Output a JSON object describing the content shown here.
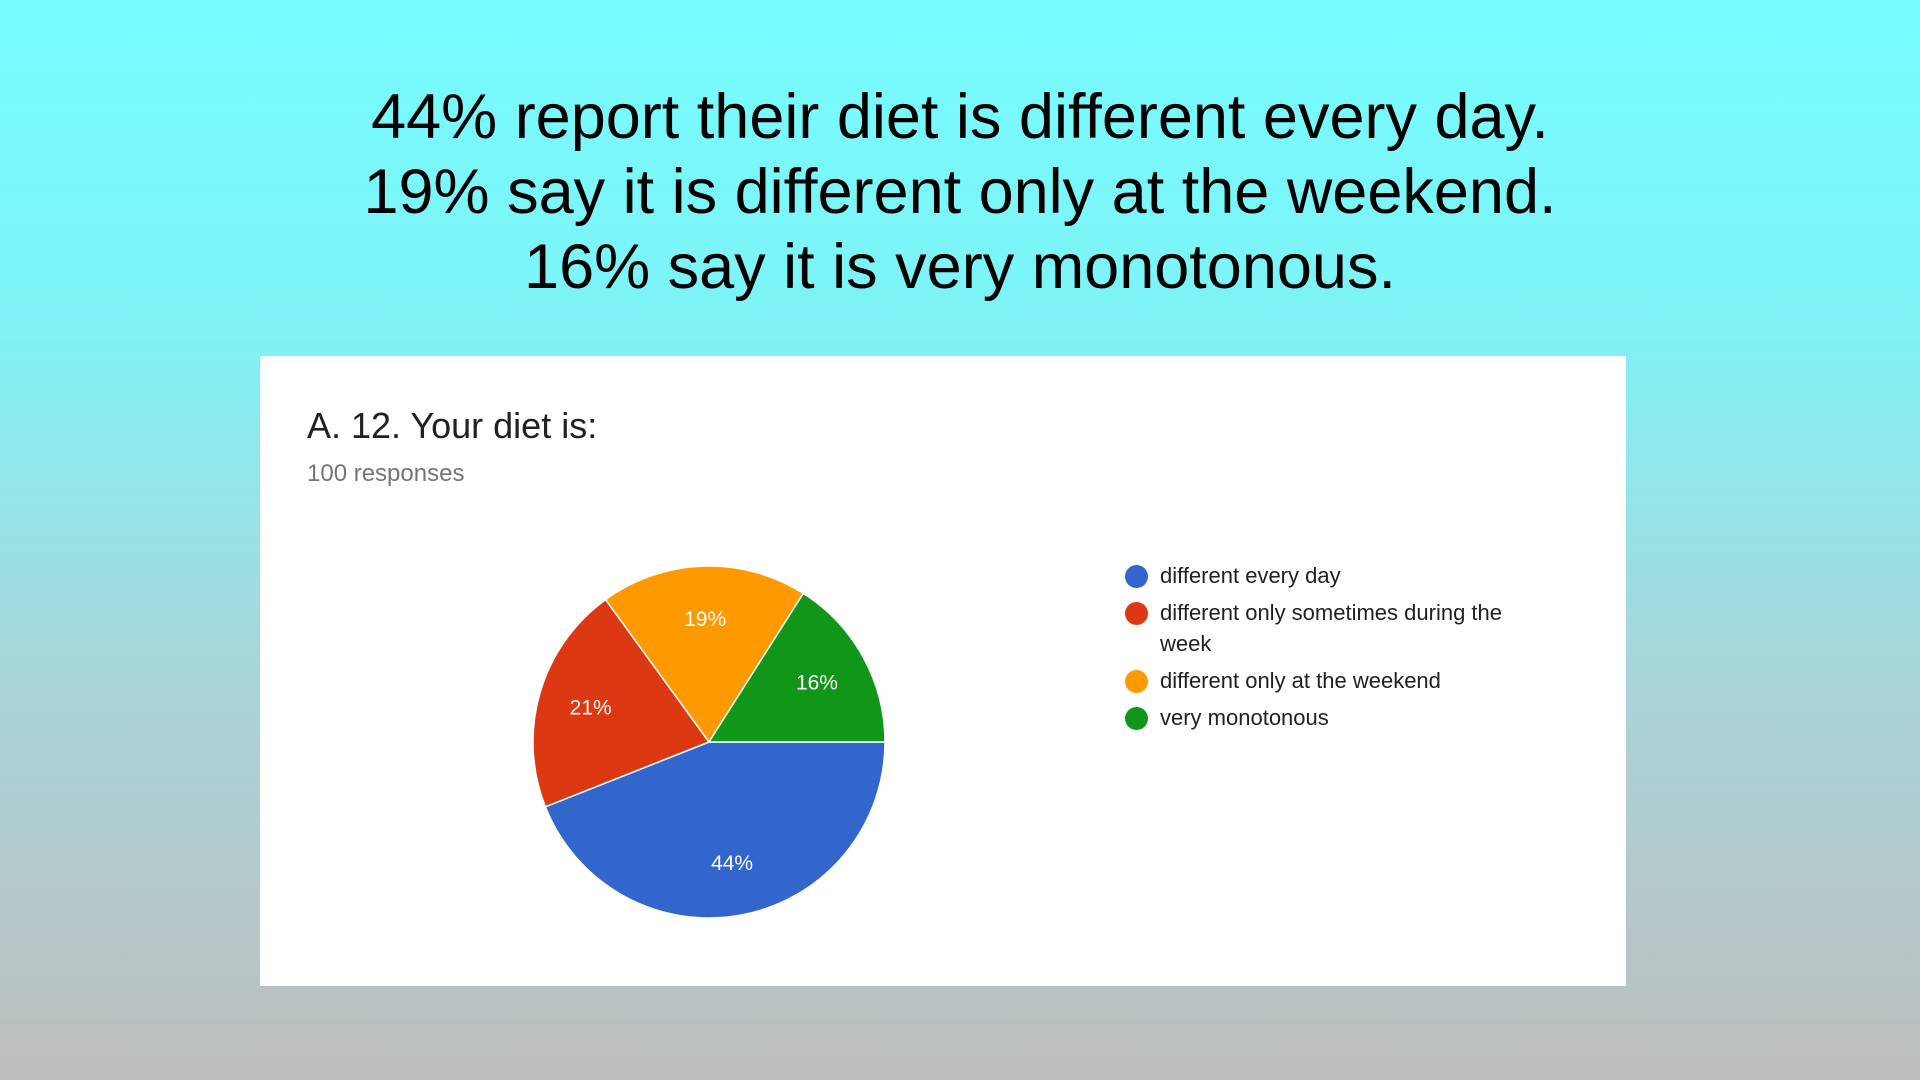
{
  "headline": {
    "line1": "44% report their diet is different every day.",
    "line2": "19% say it is different only at the weekend.",
    "line3": "16% say it is very monotonous."
  },
  "card": {
    "title": "A. 12. Your diet is:",
    "subtitle": "100 responses"
  },
  "chart_data": {
    "type": "pie",
    "title": "A. 12. Your diet is:",
    "subtitle": "100 responses",
    "legend_position": "right",
    "start_angle_deg": 90,
    "slices": [
      {
        "label": "different every day",
        "value": 44,
        "display": "44%",
        "color": "#3366cc"
      },
      {
        "label": "different only sometimes during the week",
        "value": 21,
        "display": "21%",
        "color": "#dc3912"
      },
      {
        "label": "different only at the weekend",
        "value": 19,
        "display": "19%",
        "color": "#ff9900"
      },
      {
        "label": "very monotonous",
        "value": 16,
        "display": "16%",
        "color": "#109618"
      }
    ]
  }
}
